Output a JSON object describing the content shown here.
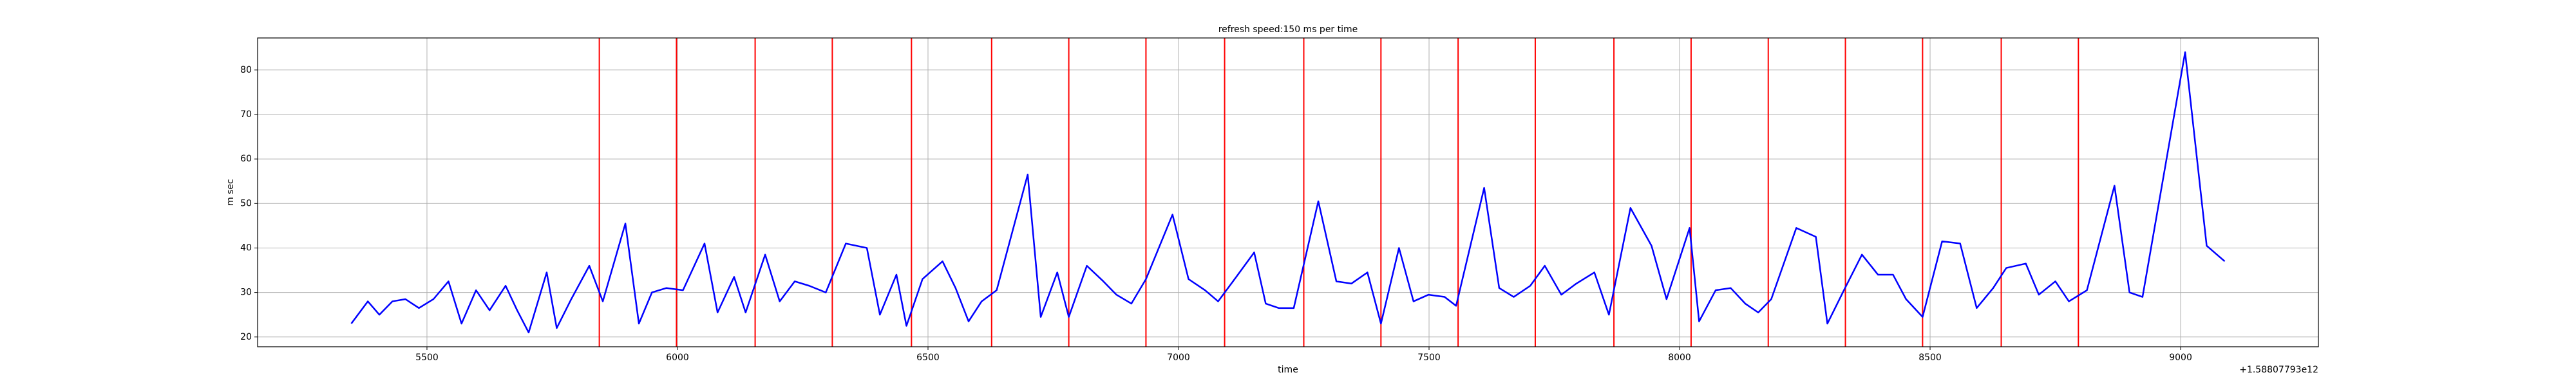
{
  "chart_data": {
    "type": "line",
    "title": "refresh speed:150 ms per time",
    "x_label": "time",
    "y_label": "m sec",
    "x_offset_label": "+1.58807793e12",
    "x": [
      5349,
      5382,
      5405,
      5431,
      5457,
      5484,
      5513,
      5543,
      5569,
      5598,
      5625,
      5657,
      5680,
      5703,
      5739,
      5759,
      5788,
      5824,
      5851,
      5896,
      5923,
      5949,
      5978,
      6011,
      6054,
      6080,
      6113,
      6136,
      6175,
      6204,
      6234,
      6263,
      6296,
      6336,
      6378,
      6404,
      6437,
      6457,
      6489,
      6529,
      6555,
      6581,
      6607,
      6637,
      6699,
      6725,
      6758,
      6781,
      6817,
      6850,
      6876,
      6906,
      6935,
      6988,
      7020,
      7053,
      7079,
      7112,
      7151,
      7174,
      7200,
      7230,
      7279,
      7315,
      7345,
      7377,
      7404,
      7440,
      7469,
      7499,
      7531,
      7554,
      7610,
      7640,
      7669,
      7702,
      7731,
      7764,
      7794,
      7830,
      7859,
      7902,
      7944,
      7974,
      8020,
      8039,
      8072,
      8102,
      8131,
      8157,
      8183,
      8233,
      8272,
      8295,
      8328,
      8364,
      8396,
      8426,
      8452,
      8485,
      8524,
      8560,
      8593,
      8626,
      8652,
      8691,
      8717,
      8750,
      8777,
      8813,
      8868,
      8898,
      8924,
      9009,
      9052,
      9088
    ],
    "series": [
      {
        "color": "#0000ff",
        "values": [
          23,
          28,
          25,
          28,
          28.5,
          26.5,
          28.5,
          32.5,
          23,
          30.5,
          26,
          31.5,
          26,
          21,
          34.5,
          22,
          28.5,
          36,
          28,
          45.5,
          23,
          30,
          31,
          30.5,
          41,
          25.5,
          33.5,
          25.5,
          38.5,
          28,
          32.5,
          31.5,
          30,
          41,
          40,
          25,
          34,
          22.5,
          33,
          37,
          31,
          23.5,
          28,
          30.5,
          56.5,
          24.5,
          34.5,
          24.5,
          36,
          32.5,
          29.5,
          27.5,
          33,
          47.5,
          33,
          30.5,
          28,
          33,
          39,
          27.5,
          26.5,
          26.5,
          50.5,
          32.5,
          32,
          34.5,
          23,
          40,
          28,
          29.5,
          29,
          27,
          53.5,
          31,
          29,
          31.5,
          36,
          29.5,
          32,
          34.5,
          25,
          49,
          40.5,
          28.5,
          44.5,
          23.5,
          30.5,
          31,
          27.5,
          25.5,
          28.5,
          44.5,
          42.5,
          23,
          30.5,
          38.5,
          34,
          34,
          28.5,
          24.5,
          41.5,
          41,
          26.5,
          31,
          35.5,
          36.5,
          29.5,
          32.5,
          28,
          30.5,
          54,
          30,
          29,
          84,
          40.5,
          37
        ]
      }
    ],
    "vlines": {
      "color": "#ff0000",
      "x": [
        5844,
        5998,
        6155,
        6309,
        6467,
        6627,
        6781,
        6935,
        7092,
        7250,
        7404,
        7558,
        7712,
        7869,
        8023,
        8177,
        8331,
        8485,
        8642,
        8796
      ]
    },
    "xlim": [
      5162,
      9275
    ],
    "ylim": [
      17.8,
      87.2
    ],
    "xticks": [
      5500,
      6000,
      6500,
      7000,
      7500,
      8000,
      8500,
      9000
    ],
    "yticks": [
      20,
      30,
      40,
      50,
      60,
      70,
      80
    ],
    "grid": true
  }
}
